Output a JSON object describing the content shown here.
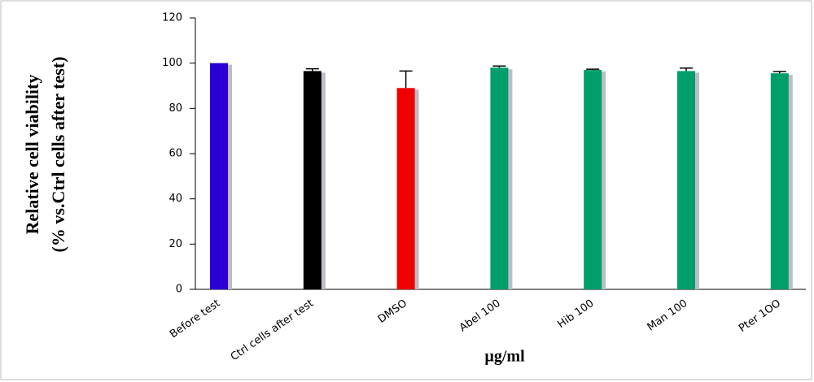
{
  "chart_data": {
    "type": "bar",
    "y_label": [
      "Relative cell viability",
      "(% vs.Ctrl cells after test)"
    ],
    "x_label": "µg/ml",
    "categories": [
      "Before test",
      "Ctrl cells after test",
      "DMSO",
      "Abel 100",
      "Hib 100",
      "Man 100",
      "Pter 1OO"
    ],
    "values": [
      100,
      96.5,
      89,
      98,
      97,
      96.5,
      95.5
    ],
    "errors": [
      0,
      1,
      7.5,
      0.7,
      0.3,
      1.3,
      0.8
    ],
    "colors": [
      "#2a00d4",
      "#000000",
      "#f00000",
      "#009e6a",
      "#009e6a",
      "#009e6a",
      "#009e6a"
    ],
    "ylim": [
      0,
      120
    ],
    "yticks": [
      0,
      20,
      40,
      60,
      80,
      100,
      120
    ],
    "grid": false
  }
}
